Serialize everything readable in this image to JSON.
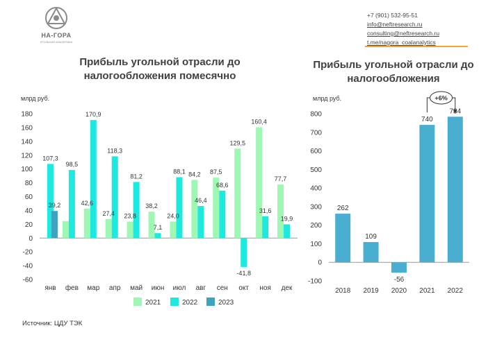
{
  "logo": {
    "name": "НА-ГОРА",
    "sub": "УГОЛЬНАЯ АНАЛИТИКА"
  },
  "contacts": {
    "phone": "+7 (901) 532-95-51",
    "email1": "info@neftresearch.ru",
    "email2": "consulting@neftresearch.ru",
    "telegram": "t.me/nagora_coalanalytics"
  },
  "source": "Источник: ЦДУ ТЭК",
  "colors": {
    "c2021": "#9ef7b3",
    "c2022": "#1de9e0",
    "c2023": "#3ca4c0",
    "annual": "#4aaed0"
  },
  "chart_data": [
    {
      "type": "bar",
      "title": "Прибыль угольной отрасли до налогообложения помесячно",
      "ylabel": "млрд руб.",
      "ylim": [
        -60,
        180
      ],
      "yticks": [
        -60,
        -40,
        -20,
        0,
        20,
        40,
        60,
        80,
        100,
        120,
        140,
        160,
        180
      ],
      "categories": [
        "янв",
        "фев",
        "мар",
        "апр",
        "май",
        "июн",
        "июл",
        "авг",
        "сен",
        "окт",
        "ноя",
        "дек"
      ],
      "series": [
        {
          "name": "2021",
          "values": [
            null,
            24.5,
            42.6,
            27.4,
            23.8,
            38.2,
            24.0,
            84.2,
            87.5,
            129.5,
            160.4,
            77.7
          ]
        },
        {
          "name": "2022",
          "values": [
            107.3,
            98.5,
            170.9,
            118.3,
            81.2,
            7.1,
            88.1,
            46.4,
            68.6,
            -41.8,
            31.6,
            19.9
          ]
        },
        {
          "name": "2023",
          "values": [
            39.2,
            null,
            null,
            null,
            null,
            null,
            null,
            null,
            null,
            null,
            null,
            null
          ]
        }
      ],
      "data_labels": [
        {
          "category": "янв",
          "text": "107,3",
          "series": "2022",
          "value": 107.3
        },
        {
          "category": "янв",
          "text": "39,2",
          "series": "2023",
          "value": 39.2
        },
        {
          "category": "фев",
          "text": "98,5",
          "series": "2022",
          "value": 98.5
        },
        {
          "category": "мар",
          "text": "42,6",
          "series": "2021",
          "value": 42.6
        },
        {
          "category": "мар",
          "text": "170,9",
          "series": "2022",
          "value": 170.9
        },
        {
          "category": "апр",
          "text": "27,4",
          "series": "2021",
          "value": 27.4
        },
        {
          "category": "апр",
          "text": "118,3",
          "series": "2022",
          "value": 118.3
        },
        {
          "category": "май",
          "text": "23,8",
          "series": "2021",
          "value": 23.8
        },
        {
          "category": "май",
          "text": "81,2",
          "series": "2022",
          "value": 81.2
        },
        {
          "category": "июн",
          "text": "38,2",
          "series": "2021",
          "value": 38.2
        },
        {
          "category": "июн",
          "text": "7,1",
          "series": "2022",
          "value": 7.1
        },
        {
          "category": "июл",
          "text": "24,0",
          "series": "2021",
          "value": 24.0
        },
        {
          "category": "июл",
          "text": "88,1",
          "series": "2022",
          "value": 88.1
        },
        {
          "category": "авг",
          "text": "84,2",
          "series": "2021",
          "value": 84.2
        },
        {
          "category": "авг",
          "text": "46,4",
          "series": "2022",
          "value": 46.4
        },
        {
          "category": "сен",
          "text": "87,5",
          "series": "2021",
          "value": 87.5
        },
        {
          "category": "сен",
          "text": "68,6",
          "series": "2022",
          "value": 68.6
        },
        {
          "category": "окт",
          "text": "129,5",
          "series": "2021",
          "value": 129.5
        },
        {
          "category": "окт",
          "text": "-41,8",
          "series": "2022",
          "value": -41.8
        },
        {
          "category": "ноя",
          "text": "160,4",
          "series": "2021",
          "value": 160.4
        },
        {
          "category": "ноя",
          "text": "31,6",
          "series": "2022",
          "value": 31.6
        },
        {
          "category": "дек",
          "text": "77,7",
          "series": "2021",
          "value": 77.7
        },
        {
          "category": "дек",
          "text": "19,9",
          "series": "2022",
          "value": 19.9
        }
      ],
      "legend": [
        "2021",
        "2022",
        "2023"
      ],
      "legend_position": "bottom"
    },
    {
      "type": "bar",
      "title": "Прибыль угольной отрасли до налогообложения",
      "ylabel": "млрд руб.",
      "ylim": [
        -100,
        800
      ],
      "yticks": [
        -100,
        0,
        100,
        200,
        300,
        400,
        500,
        600,
        700,
        800
      ],
      "categories": [
        "2018",
        "2019",
        "2020",
        "2021",
        "2022"
      ],
      "values": [
        262,
        109,
        -56,
        740,
        784
      ],
      "labels": [
        "262",
        "109",
        "-56",
        "740",
        "784"
      ],
      "annotation": "+6%"
    }
  ]
}
